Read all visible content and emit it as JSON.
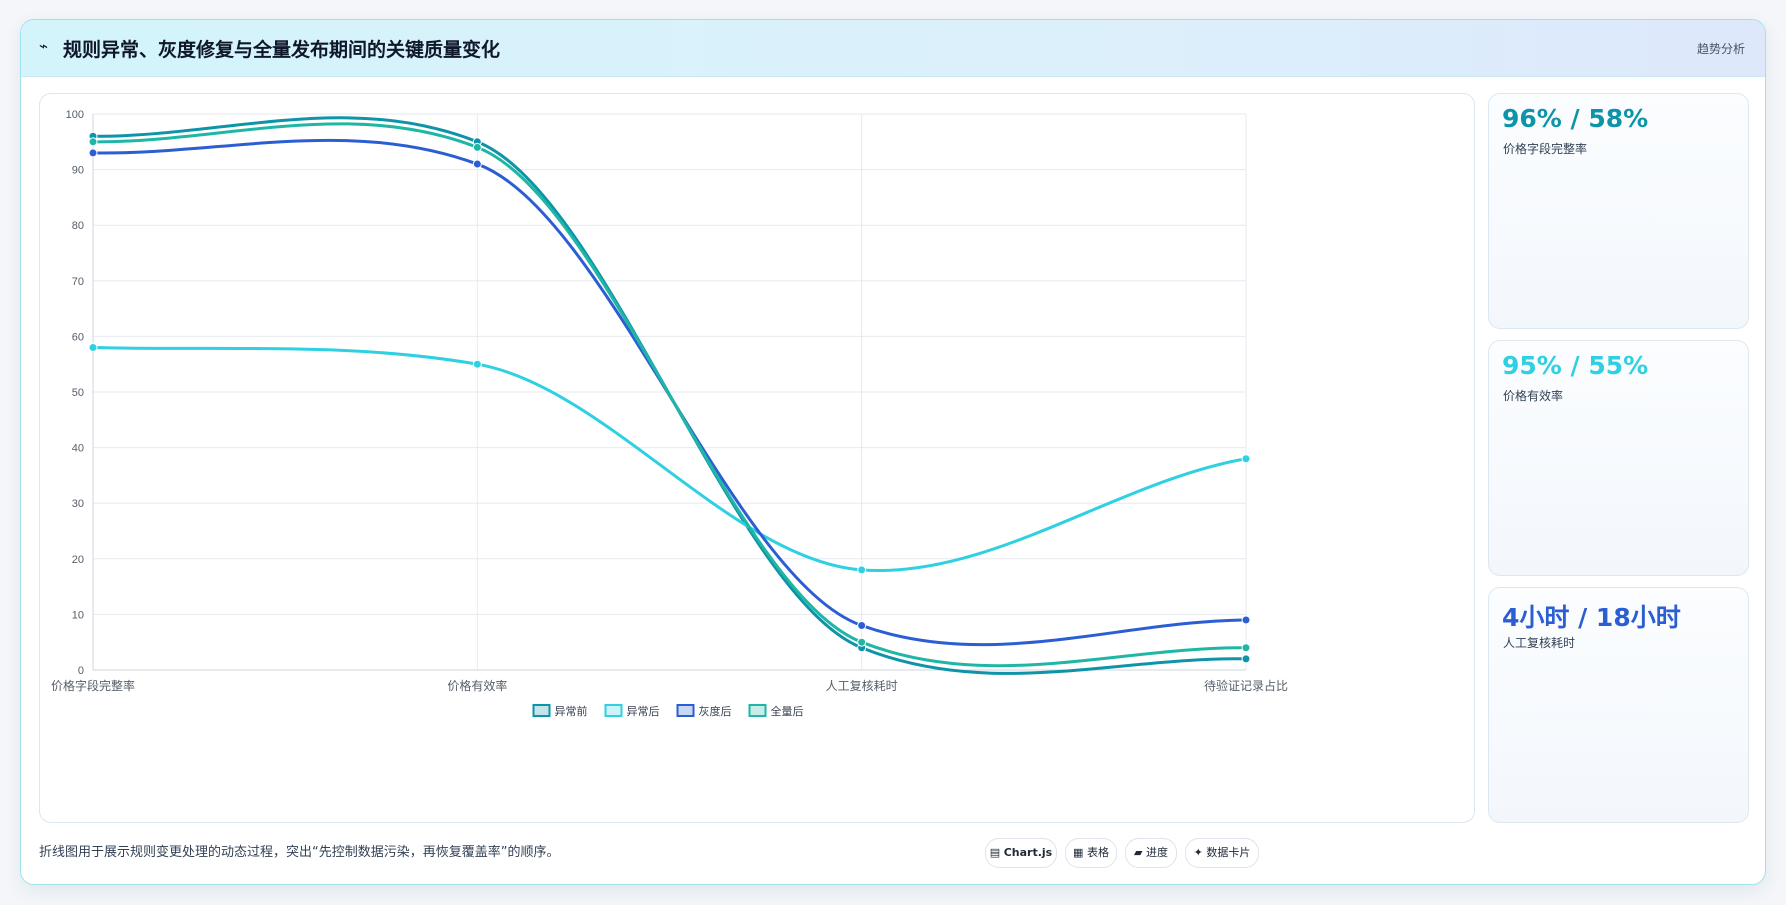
{
  "header": {
    "icon": "trend-icon",
    "title": "规则异常、灰度修复与全量发布期间的关键质量变化",
    "tag": "趋势分析"
  },
  "chart_data": {
    "type": "line",
    "categories": [
      "价格字段完整率",
      "价格有效率",
      "人工复核耗时",
      "待验证记录占比"
    ],
    "ylim": [
      0,
      100
    ],
    "yticks": [
      0,
      10,
      20,
      30,
      40,
      50,
      60,
      70,
      80,
      90,
      100
    ],
    "grid": true,
    "legend_position": "bottom",
    "series": [
      {
        "name": "异常前",
        "color": "#0e94a8",
        "values": [
          96,
          95,
          4,
          2
        ]
      },
      {
        "name": "异常后",
        "color": "#2fd0e2",
        "values": [
          58,
          55,
          18,
          38
        ]
      },
      {
        "name": "灰度后",
        "color": "#2c5ed3",
        "values": [
          93,
          91,
          8,
          9
        ]
      },
      {
        "name": "全量后",
        "color": "#1fb6a5",
        "values": [
          95,
          94,
          5,
          4
        ]
      }
    ]
  },
  "kpis": [
    {
      "value": "96% / 58%",
      "label": "价格字段完整率",
      "color": "#0e94a8"
    },
    {
      "value": "95% / 55%",
      "label": "价格有效率",
      "color": "#2fd0e2"
    },
    {
      "value": "4小时 / 18小时",
      "label": "人工复核耗时",
      "color": "#2c5ed3"
    }
  ],
  "footnote": "折线图用于展示规则变更处理的动态过程，突出“先控制数据污染，再恢复覆盖率”的顺序。",
  "pills": [
    {
      "icon": "chart-icon",
      "label": "Chart.js"
    },
    {
      "icon": "table-icon",
      "label": "表格"
    },
    {
      "icon": "progress-icon",
      "label": "进度"
    },
    {
      "icon": "card-icon",
      "label": "数据卡片"
    }
  ]
}
